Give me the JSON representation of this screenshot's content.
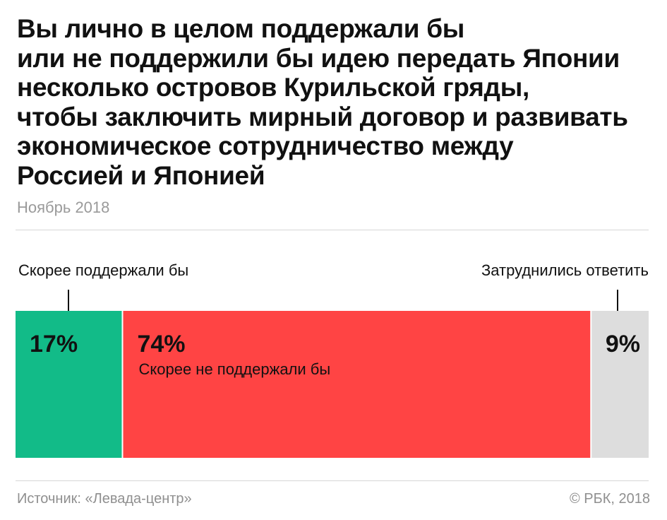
{
  "title": "Вы лично в целом поддержали бы\nили не поддержили бы идею передать Японии\nнесколько островов Курильской гряды,\nчтобы заключить мирный договор и развивать\nэкономическое сотрудничество между\nРоссией и Японией",
  "subtitle": "Ноябрь 2018",
  "footer": {
    "source": "Источник: «Левада-центр»",
    "copyright": "© РБК, 2018"
  },
  "chart_data": {
    "type": "bar",
    "orientation": "horizontal-stacked",
    "title": "Вы лично в целом поддержали бы или не поддержили бы идею передать Японии несколько островов Курильской гряды, чтобы заключить мирный договор и развивать экономическое сотрудничество между Россией и Японией",
    "subtitle": "Ноябрь 2018",
    "unit": "%",
    "total": 100,
    "segments": [
      {
        "label": "Скорее поддержали бы",
        "value": 17,
        "value_label": "17%",
        "color": "#12bb88",
        "label_position": "above"
      },
      {
        "label": "Скорее не поддержали бы",
        "value": 74,
        "value_label": "74%",
        "color": "#ff4444",
        "label_position": "inside"
      },
      {
        "label": "Затруднились ответить",
        "value": 9,
        "value_label": "9%",
        "color": "#dddddd",
        "label_position": "above"
      }
    ]
  }
}
